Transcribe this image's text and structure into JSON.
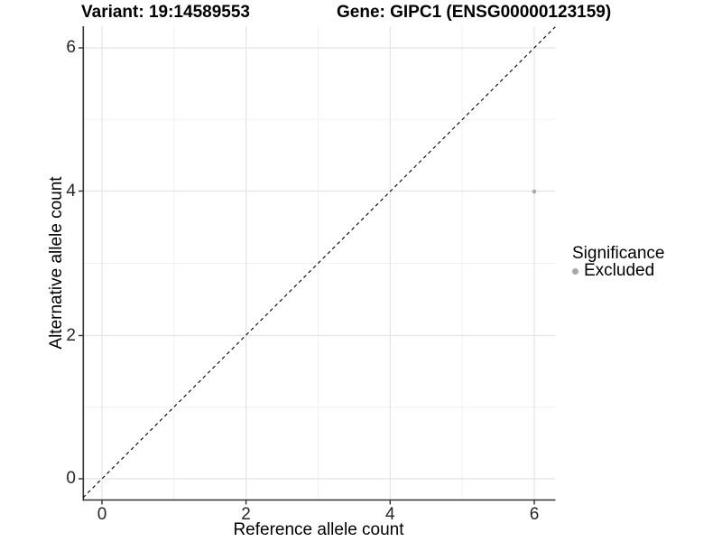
{
  "colors": {
    "background": "#ffffff",
    "axis_line": "#333333",
    "grid_major": "#e4e4e4",
    "grid_minor": "#f1f1f1",
    "identity_line": "#000000",
    "excluded_point": "#a9a9a9"
  },
  "chart_data": {
    "type": "scatter",
    "title_left": "Variant: 19:14589553",
    "title_right": "Gene: GIPC1 (ENSG00000123159)",
    "xlabel": "Reference allele count",
    "ylabel": "Alternative allele count",
    "x_tick_labels": [
      "0",
      "2",
      "4",
      "6"
    ],
    "y_tick_labels": [
      "0",
      "2",
      "4",
      "6"
    ],
    "x_ticks": [
      0,
      2,
      4,
      6
    ],
    "y_ticks": [
      0,
      2,
      4,
      6
    ],
    "xlim": [
      -0.26,
      6.29
    ],
    "ylim": [
      -0.28,
      6.31
    ],
    "grid": "major and minor light grey gridlines on white panel",
    "series": [
      {
        "name": "Excluded",
        "color": "#a9a9a9",
        "points": [
          [
            6,
            4
          ]
        ]
      }
    ],
    "identity_line": {
      "equation": "y = x",
      "style": "dashed",
      "color": "#000000"
    },
    "legend": {
      "title": "Significance",
      "position": "right",
      "entries": [
        {
          "label": "Excluded",
          "color": "#a9a9a9"
        }
      ]
    }
  }
}
